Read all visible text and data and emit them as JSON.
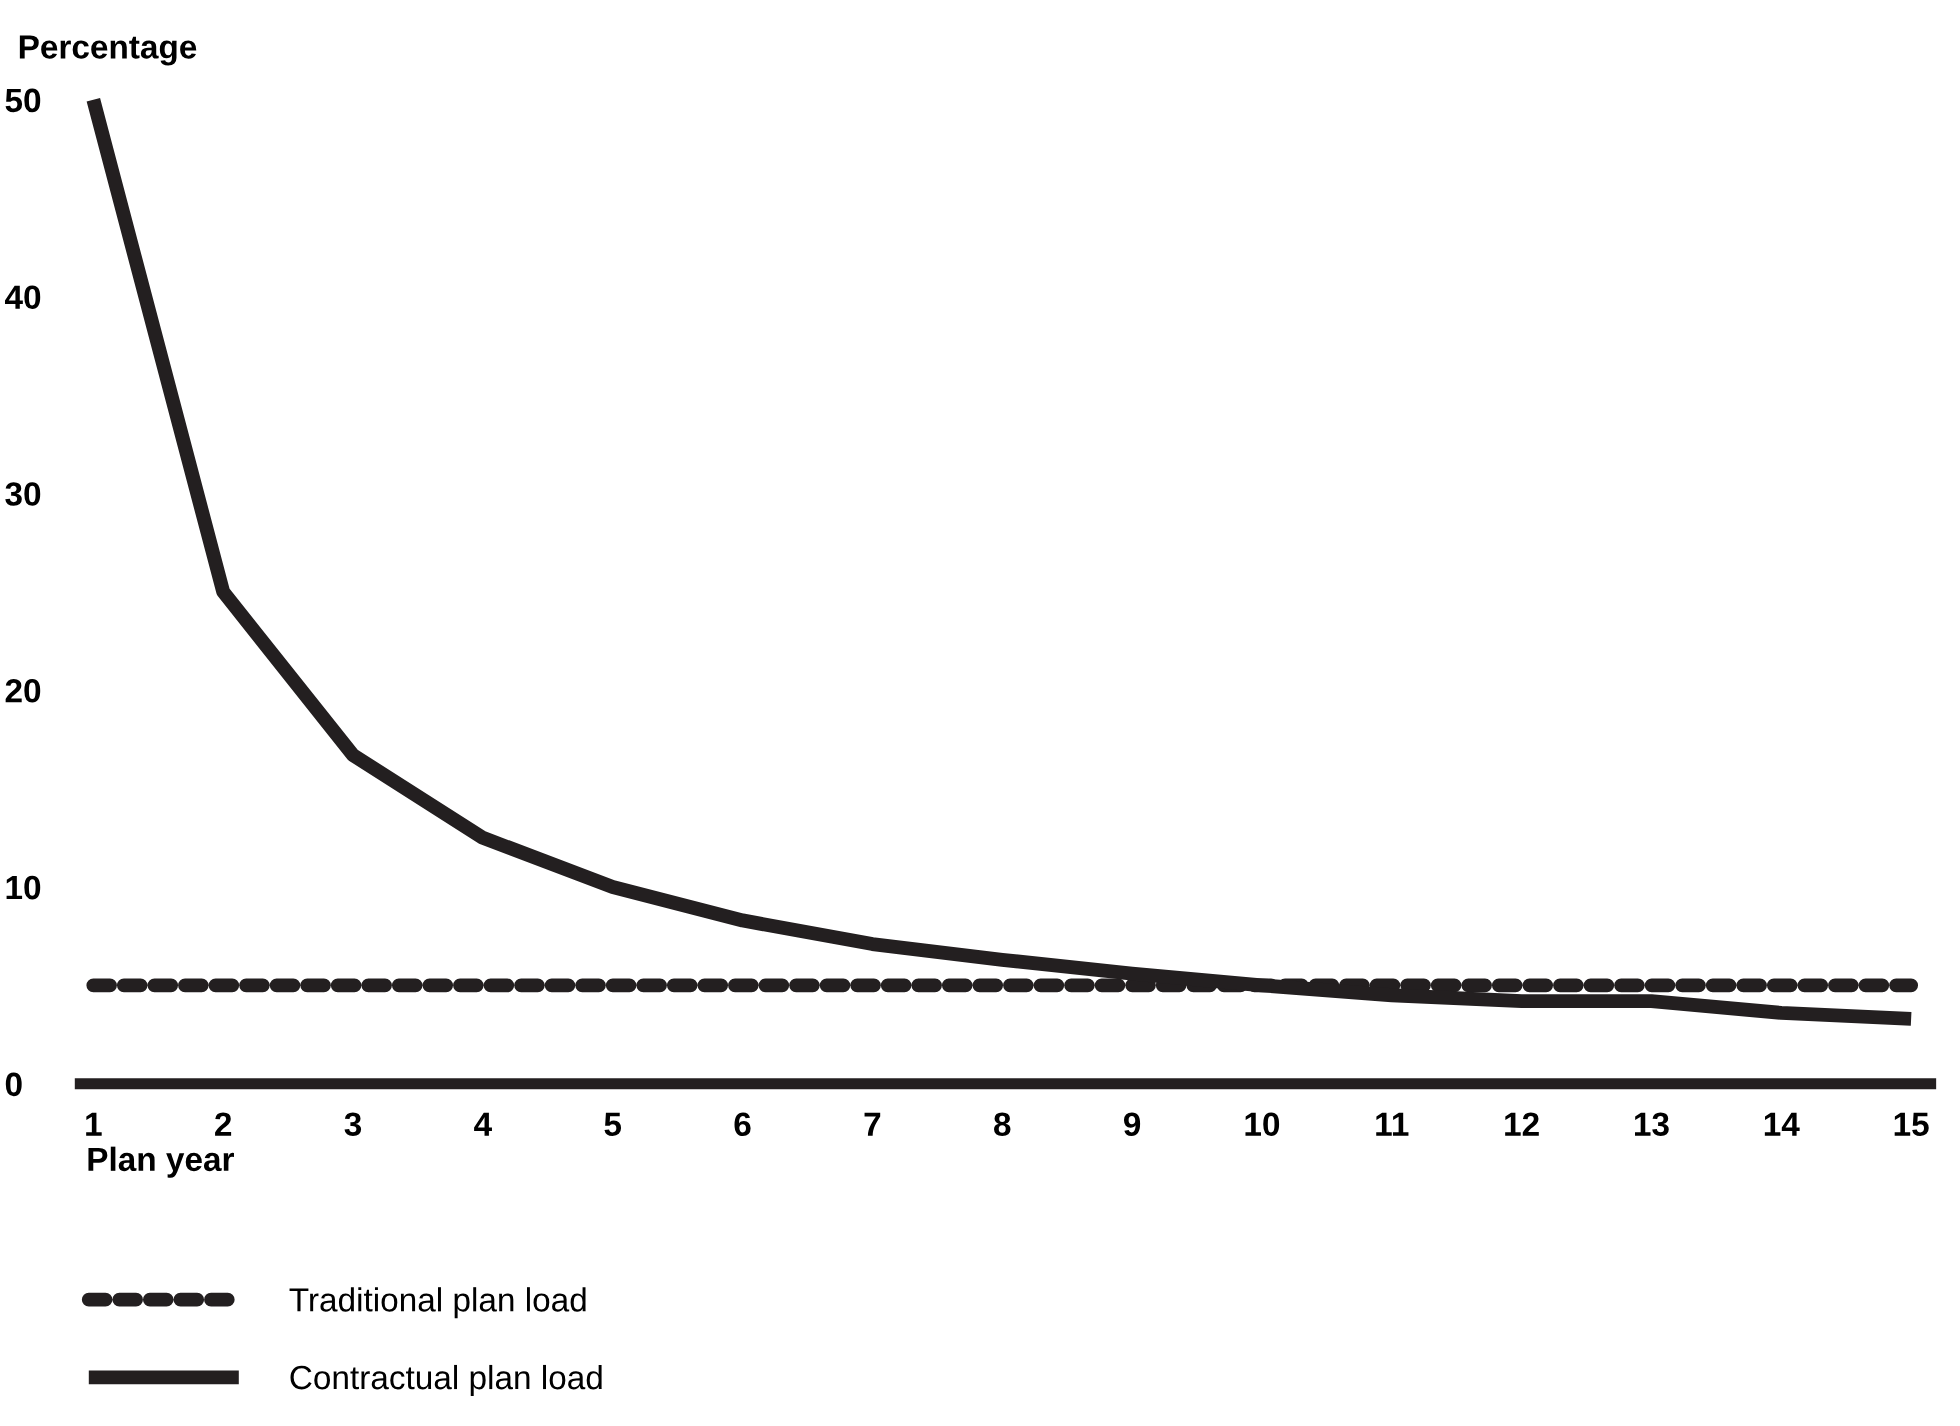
{
  "chart_data": {
    "type": "line",
    "ylabel": "Percentage",
    "xlabel": "Plan year",
    "x": [
      1,
      2,
      3,
      4,
      5,
      6,
      7,
      8,
      9,
      10,
      11,
      12,
      13,
      14,
      15
    ],
    "series": [
      {
        "name": "Traditional plan load",
        "color": "#231f20",
        "line_style": "dashed",
        "values": [
          5,
          5,
          5,
          5,
          5,
          5,
          5,
          5,
          5,
          5,
          5,
          5,
          5,
          5,
          5
        ]
      },
      {
        "name": "Contractual plan load",
        "color": "#231f20",
        "line_style": "solid",
        "values": [
          50,
          25,
          16.7,
          12.5,
          10,
          8.3,
          7.1,
          6.3,
          5.6,
          5,
          4.5,
          4.2,
          4.2,
          3.6,
          3.3
        ]
      }
    ],
    "xlim": [
      0.9,
      15.15
    ],
    "ylim": [
      0,
      50
    ],
    "xticks": [
      1,
      2,
      3,
      4,
      5,
      6,
      7,
      8,
      9,
      10,
      11,
      12,
      13,
      14,
      15
    ],
    "yticks": [
      0,
      10,
      20,
      30,
      40,
      50
    ],
    "legend": "bottom left",
    "marker": "none"
  }
}
